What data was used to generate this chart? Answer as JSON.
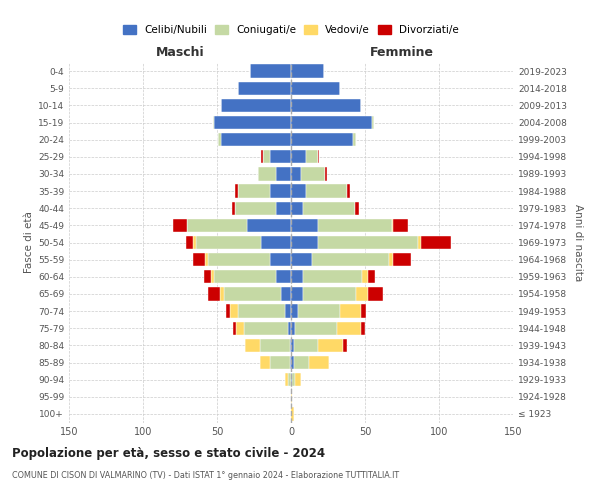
{
  "age_groups": [
    "100+",
    "95-99",
    "90-94",
    "85-89",
    "80-84",
    "75-79",
    "70-74",
    "65-69",
    "60-64",
    "55-59",
    "50-54",
    "45-49",
    "40-44",
    "35-39",
    "30-34",
    "25-29",
    "20-24",
    "15-19",
    "10-14",
    "5-9",
    "0-4"
  ],
  "birth_years": [
    "≤ 1923",
    "1924-1928",
    "1929-1933",
    "1934-1938",
    "1939-1943",
    "1944-1948",
    "1949-1953",
    "1954-1958",
    "1959-1963",
    "1964-1968",
    "1969-1973",
    "1974-1978",
    "1979-1983",
    "1984-1988",
    "1989-1993",
    "1994-1998",
    "1999-2003",
    "2004-2008",
    "2009-2013",
    "2014-2018",
    "2019-2023"
  ],
  "male": {
    "celibi": [
      0,
      0,
      0,
      1,
      1,
      2,
      4,
      7,
      10,
      14,
      20,
      30,
      10,
      14,
      10,
      14,
      47,
      52,
      47,
      36,
      28
    ],
    "coniugati": [
      0,
      0,
      2,
      13,
      20,
      30,
      32,
      38,
      42,
      42,
      44,
      40,
      28,
      22,
      12,
      5,
      2,
      1,
      0,
      0,
      0
    ],
    "vedovi": [
      0,
      0,
      2,
      7,
      10,
      5,
      5,
      3,
      2,
      2,
      2,
      0,
      0,
      0,
      0,
      0,
      0,
      0,
      0,
      0,
      0
    ],
    "divorziati": [
      0,
      0,
      0,
      0,
      0,
      2,
      3,
      8,
      5,
      8,
      5,
      10,
      2,
      2,
      0,
      1,
      0,
      0,
      0,
      0,
      0
    ]
  },
  "female": {
    "celibi": [
      0,
      0,
      1,
      2,
      2,
      3,
      5,
      8,
      8,
      14,
      18,
      18,
      8,
      10,
      7,
      10,
      42,
      55,
      47,
      33,
      22
    ],
    "coniugati": [
      0,
      0,
      2,
      10,
      16,
      28,
      28,
      36,
      40,
      52,
      68,
      50,
      35,
      28,
      16,
      8,
      2,
      1,
      0,
      0,
      0
    ],
    "vedovi": [
      2,
      1,
      4,
      14,
      17,
      16,
      14,
      8,
      4,
      3,
      2,
      1,
      0,
      0,
      0,
      0,
      0,
      0,
      0,
      0,
      0
    ],
    "divorziati": [
      0,
      0,
      0,
      0,
      3,
      3,
      4,
      10,
      5,
      12,
      20,
      10,
      3,
      2,
      1,
      1,
      0,
      0,
      0,
      0,
      0
    ]
  },
  "colors": {
    "celibi": "#4472c4",
    "coniugati": "#c5d9a4",
    "vedovi": "#ffd966",
    "divorziati": "#cc0000"
  },
  "legend_labels": [
    "Celibi/Nubili",
    "Coniugati/e",
    "Vedovi/e",
    "Divorziati/e"
  ],
  "title": "Popolazione per età, sesso e stato civile - 2024",
  "subtitle": "COMUNE DI CISON DI VALMARINO (TV) - Dati ISTAT 1° gennaio 2024 - Elaborazione TUTTITALIA.IT",
  "xlabel_left": "Maschi",
  "xlabel_right": "Femmine",
  "ylabel_left": "Fasce di età",
  "ylabel_right": "Anni di nascita",
  "xlim": 150,
  "bg_color": "#ffffff",
  "grid_color": "#cccccc"
}
